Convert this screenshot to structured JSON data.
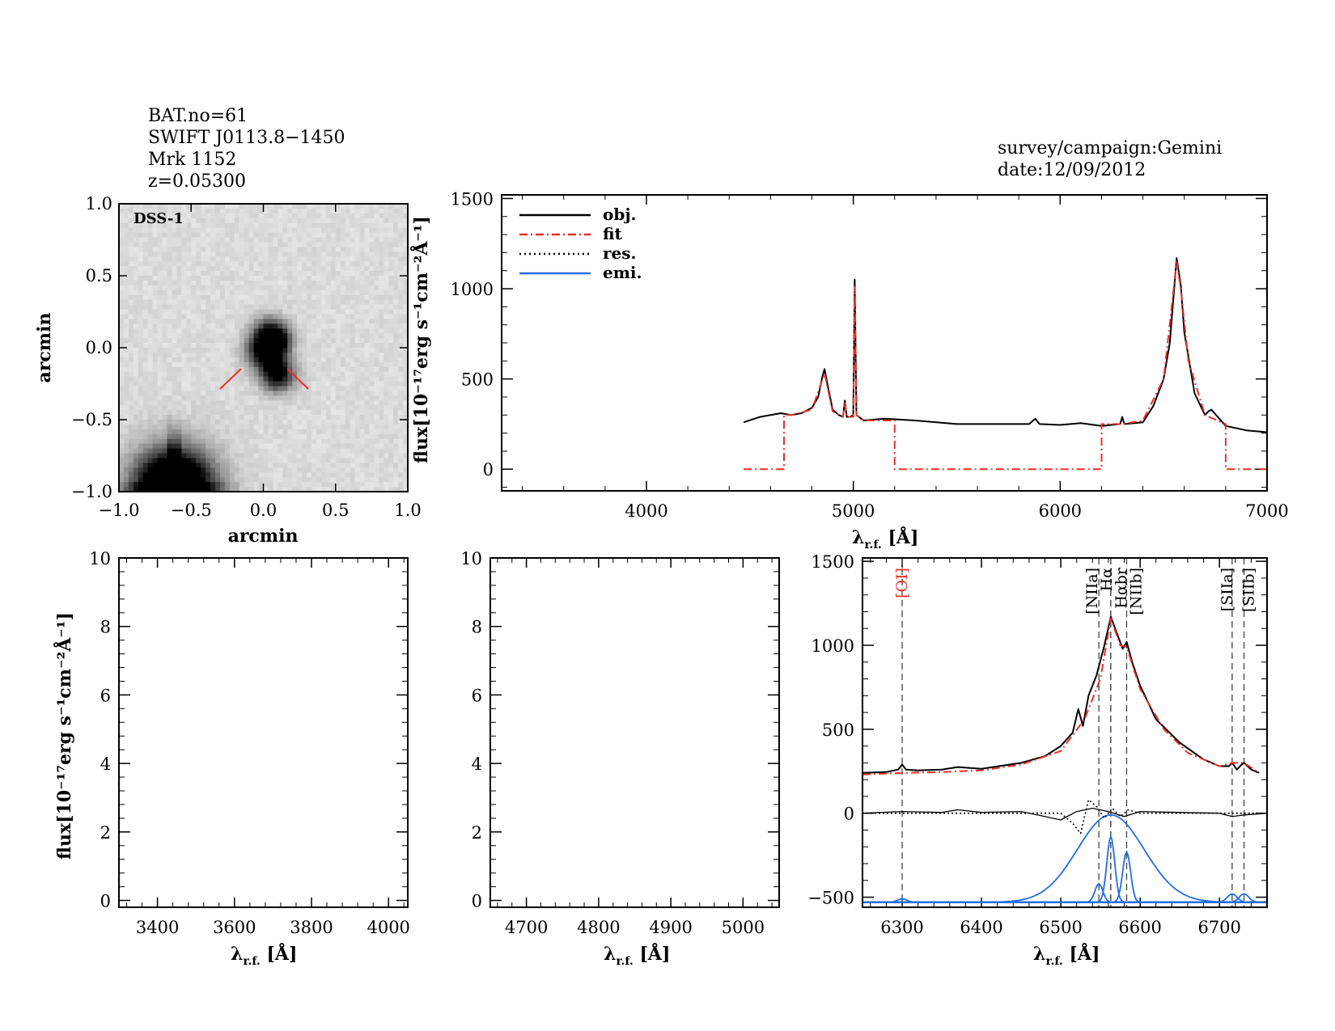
{
  "header": {
    "lines": [
      "BAT.no=61",
      "SWIFT J0113.8−1450",
      "Mrk 1152",
      "z=0.05300"
    ],
    "survey": "survey/campaign:Gemini",
    "date": "date:12/09/2012"
  },
  "image_panel": {
    "label": "DSS-1",
    "xlabel": "arcmin",
    "ylabel": "arcmin",
    "xticks": [
      "−1.0",
      "−0.5",
      "0.0",
      "0.5",
      "1.0"
    ],
    "yticks": [
      "−1.0",
      "−0.5",
      "0.0",
      "0.5",
      "1.0"
    ],
    "marker_color": "#e8302a"
  },
  "colors": {
    "obj": "#000000",
    "fit": "#e8302a",
    "res": "#000000",
    "emi": "#1f6fe0",
    "oi_label": "#e8302a"
  },
  "ylabel_text": "flux[10⁻¹⁷erg s⁻¹cm⁻²Å⁻¹]",
  "xlabel_text": "λ",
  "xlabel_sub": "r.f.",
  "xlabel_unit": " [Å]",
  "chart_data": [
    {
      "id": "full_spectrum",
      "type": "line",
      "xlim": [
        3300,
        7000
      ],
      "ylim": [
        -120,
        1520
      ],
      "xticks": [
        4000,
        5000,
        6000,
        7000
      ],
      "yticks": [
        0,
        500,
        1000,
        1500
      ],
      "legend": [
        "obj.",
        "fit",
        "res.",
        "emi."
      ],
      "legend_position": "top-left",
      "series": [
        {
          "name": "obj.",
          "style": "solid",
          "x": [
            4470,
            4550,
            4650,
            4700,
            4750,
            4800,
            4830,
            4850,
            4861,
            4875,
            4900,
            4930,
            4950,
            4959,
            4968,
            4985,
            5000,
            5007,
            5015,
            5050,
            5150,
            5300,
            5500,
            5700,
            5850,
            5880,
            5900,
            6000,
            6100,
            6200,
            6290,
            6300,
            6310,
            6400,
            6450,
            6500,
            6530,
            6563,
            6583,
            6600,
            6650,
            6700,
            6716,
            6731,
            6800,
            6900,
            7000
          ],
          "y": [
            260,
            290,
            310,
            300,
            310,
            340,
            400,
            510,
            555,
            470,
            330,
            300,
            290,
            380,
            290,
            290,
            300,
            1050,
            300,
            270,
            280,
            270,
            250,
            250,
            250,
            280,
            250,
            245,
            255,
            240,
            250,
            290,
            250,
            260,
            350,
            500,
            700,
            1170,
            1020,
            760,
            420,
            300,
            320,
            330,
            240,
            215,
            205
          ]
        },
        {
          "name": "fit",
          "style": "dashdot",
          "x": [
            4470,
            4665,
            4665,
            4700,
            4800,
            4861,
            4900,
            4950,
            4959,
            4968,
            5000,
            5007,
            5015,
            5050,
            5200,
            5200,
            6200,
            6200,
            6300,
            6400,
            6500,
            6563,
            6583,
            6620,
            6700,
            6800,
            6800,
            7000
          ],
          "y": [
            0,
            0,
            300,
            300,
            330,
            530,
            320,
            290,
            370,
            290,
            290,
            1010,
            300,
            270,
            270,
            0,
            0,
            250,
            250,
            270,
            500,
            1150,
            1000,
            600,
            300,
            250,
            0,
            0
          ]
        }
      ]
    },
    {
      "id": "h_beta_window",
      "type": "line",
      "xlim": [
        3300,
        4050
      ],
      "ylim": [
        -0.2,
        10
      ],
      "xticks": [
        3400,
        3600,
        3800,
        4000
      ],
      "yticks": [
        0,
        2,
        4,
        6,
        8,
        10
      ],
      "series": []
    },
    {
      "id": "oiii_window",
      "type": "line",
      "xlim": [
        4650,
        5050
      ],
      "ylim": [
        -0.2,
        10
      ],
      "xticks": [
        4700,
        4800,
        4900,
        5000
      ],
      "yticks": [
        0,
        2,
        4,
        6,
        8,
        10
      ],
      "series": []
    },
    {
      "id": "h_alpha_window",
      "type": "line",
      "xlim": [
        6250,
        6760
      ],
      "ylim": [
        -560,
        1520
      ],
      "xticks": [
        6300,
        6400,
        6500,
        6600,
        6700
      ],
      "yticks": [
        -500,
        0,
        500,
        1000,
        1500
      ],
      "lines": [
        {
          "label": "[OI]",
          "x": 6300,
          "color": "red"
        },
        {
          "label": "[NIIa]",
          "x": 6548
        },
        {
          "label": "Hα",
          "x": 6563
        },
        {
          "label": "Hαbr",
          "x": 6563
        },
        {
          "label": "[NIIb]",
          "x": 6583
        },
        {
          "label": "[SIIa]",
          "x": 6716
        },
        {
          "label": "[SIIb]",
          "x": 6731
        }
      ],
      "series": [
        {
          "name": "obj.",
          "style": "solid",
          "x": [
            6250,
            6280,
            6295,
            6300,
            6305,
            6320,
            6350,
            6370,
            6400,
            6450,
            6480,
            6500,
            6515,
            6522,
            6528,
            6535,
            6545,
            6555,
            6563,
            6570,
            6578,
            6583,
            6590,
            6600,
            6620,
            6650,
            6680,
            6700,
            6712,
            6716,
            6722,
            6728,
            6731,
            6740,
            6750
          ],
          "y": [
            240,
            245,
            260,
            290,
            260,
            255,
            260,
            275,
            265,
            300,
            340,
            400,
            480,
            620,
            520,
            700,
            820,
            1000,
            1170,
            1080,
            980,
            1020,
            900,
            760,
            560,
            420,
            320,
            280,
            280,
            300,
            260,
            290,
            300,
            260,
            240
          ]
        },
        {
          "name": "fit",
          "style": "dashdot",
          "x": [
            6250,
            6300,
            6350,
            6400,
            6450,
            6500,
            6530,
            6550,
            6563,
            6575,
            6583,
            6600,
            6630,
            6660,
            6700,
            6716,
            6731,
            6750
          ],
          "y": [
            230,
            240,
            245,
            255,
            290,
            370,
            560,
            800,
            1160,
            1000,
            990,
            740,
            500,
            360,
            280,
            300,
            300,
            240
          ]
        },
        {
          "name": "res.",
          "style": "dotted",
          "x": [
            6250,
            6500,
            6515,
            6525,
            6535,
            6545,
            6555,
            6565,
            6575,
            6585,
            6600,
            6760
          ],
          "y": [
            0,
            0,
            -60,
            -120,
            80,
            40,
            -30,
            30,
            -20,
            20,
            0,
            0
          ]
        },
        {
          "name": "res-solid",
          "style": "solid",
          "x": [
            6250,
            6300,
            6350,
            6370,
            6400,
            6450,
            6480,
            6500,
            6520,
            6540,
            6560,
            6580,
            6600,
            6650,
            6700,
            6716,
            6731,
            6760
          ],
          "y": [
            0,
            10,
            5,
            20,
            5,
            10,
            -20,
            -40,
            10,
            30,
            10,
            -20,
            10,
            5,
            0,
            -20,
            -10,
            0
          ]
        },
        {
          "name": "emi-base",
          "style": "solid",
          "x": [
            6250,
            6760
          ],
          "y": [
            -530,
            -530
          ]
        }
      ],
      "emission_gaussians": [
        {
          "center": 6563,
          "amp": 520,
          "sigma": 42
        },
        {
          "center": 6563,
          "amp": 390,
          "sigma": 5
        },
        {
          "center": 6583,
          "amp": 300,
          "sigma": 5
        },
        {
          "center": 6548,
          "amp": 110,
          "sigma": 5
        },
        {
          "center": 6300,
          "amp": 20,
          "sigma": 6
        },
        {
          "center": 6716,
          "amp": 50,
          "sigma": 6
        },
        {
          "center": 6731,
          "amp": 50,
          "sigma": 6
        }
      ],
      "emission_baseline": -530
    }
  ]
}
